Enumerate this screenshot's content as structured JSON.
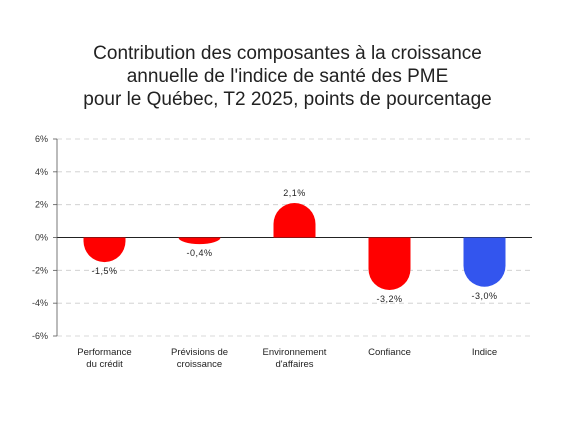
{
  "chart_data": {
    "type": "bar",
    "title_lines": [
      "Contribution des composantes à la croissance",
      "annuelle de l'indice de santé des PME",
      "pour le Québec, T2 2025, points de pourcentage"
    ],
    "categories": [
      [
        "Performance",
        "du crédit"
      ],
      [
        "Prévisions de",
        "croissance"
      ],
      [
        "Environnement",
        "d'affaires"
      ],
      [
        "Confiance"
      ],
      [
        "Indice"
      ]
    ],
    "values": [
      -1.5,
      -0.4,
      2.1,
      -3.2,
      -3.0
    ],
    "value_labels": [
      "-1,5%",
      "-0,4%",
      "2,1%",
      "-3,2%",
      "-3,0%"
    ],
    "bar_colors": [
      "#ff0000",
      "#ff0000",
      "#ff0000",
      "#ff0000",
      "#3355ee"
    ],
    "ylim": [
      -6,
      6
    ],
    "yticks": [
      6,
      4,
      2,
      0,
      -2,
      -4,
      -6
    ],
    "ytick_labels": [
      "6%",
      "4%",
      "2%",
      "0%",
      "-2%",
      "-4%",
      "-6%"
    ],
    "grid": true,
    "xlabel": "",
    "ylabel": ""
  }
}
